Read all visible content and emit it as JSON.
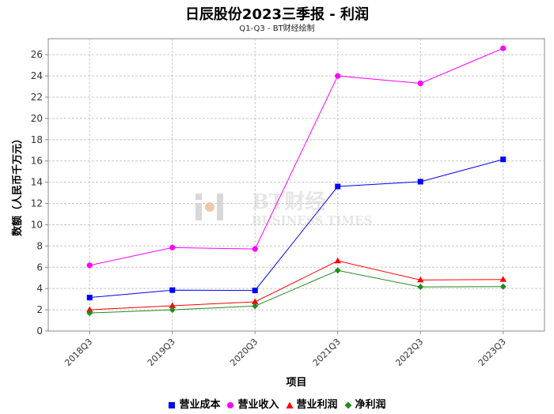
{
  "title": "日辰股份2023三季报 - 利润",
  "subtitle": "Q1-Q3 - BT财经绘制",
  "watermark": {
    "main": "BT财经",
    "sub": "BUSINESS TIMES"
  },
  "chart_data": {
    "type": "line",
    "xlabel": "项目",
    "ylabel": "数额（人民币千万元）",
    "categories": [
      "2018Q3",
      "2019Q3",
      "2020Q3",
      "2021Q3",
      "2022Q3",
      "2023Q3"
    ],
    "ylim": [
      0,
      27.5
    ],
    "yticks": [
      0,
      2,
      4,
      6,
      8,
      10,
      12,
      14,
      16,
      18,
      20,
      22,
      24,
      26
    ],
    "grid": true,
    "legend_position": "bottom",
    "series": [
      {
        "name": "营业成本",
        "color": "#0000ff",
        "marker": "square",
        "values": [
          3.15,
          3.85,
          3.82,
          13.6,
          14.05,
          16.15
        ]
      },
      {
        "name": "营业收入",
        "color": "#ff00ff",
        "marker": "circle",
        "values": [
          6.18,
          7.85,
          7.72,
          24.0,
          23.3,
          26.6
        ]
      },
      {
        "name": "营业利润",
        "color": "#ff0000",
        "marker": "triangle",
        "values": [
          2.0,
          2.38,
          2.75,
          6.6,
          4.8,
          4.85
        ]
      },
      {
        "name": "净利润",
        "color": "#228b22",
        "marker": "diamond",
        "values": [
          1.7,
          2.0,
          2.35,
          5.7,
          4.15,
          4.18
        ]
      }
    ]
  }
}
